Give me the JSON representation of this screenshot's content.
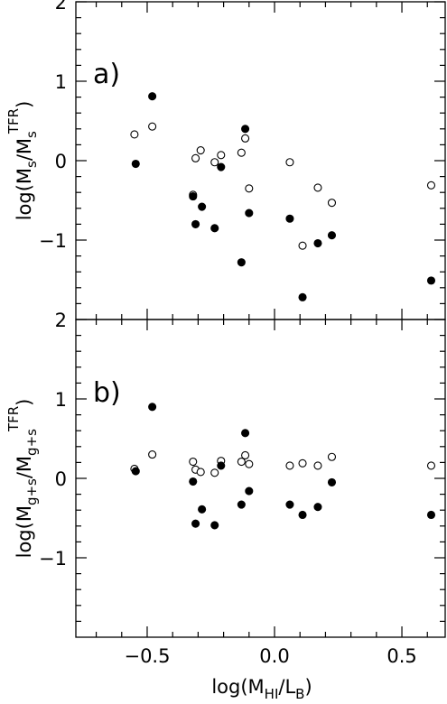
{
  "chart_data": [
    {
      "type": "scatter",
      "panel_label": "a)",
      "ylabel": {
        "main": "log(M",
        "sub1": "s",
        "mid": "/M",
        "sub2": "s",
        "sup": "TFR",
        "end": ")"
      },
      "xlim": [
        -0.78,
        0.67
      ],
      "ylim": [
        -2,
        2
      ],
      "yticks": [
        2,
        1,
        0,
        -1
      ],
      "ytick_labels": [
        "2",
        "1",
        "0",
        "−1"
      ],
      "series": [
        {
          "marker": "open-circle",
          "points": [
            {
              "x": -0.55,
              "y": 0.33
            },
            {
              "x": -0.48,
              "y": 0.43
            },
            {
              "x": -0.32,
              "y": -0.43
            },
            {
              "x": -0.31,
              "y": 0.03
            },
            {
              "x": -0.29,
              "y": 0.13
            },
            {
              "x": -0.235,
              "y": -0.02
            },
            {
              "x": -0.21,
              "y": 0.07
            },
            {
              "x": -0.13,
              "y": 0.1
            },
            {
              "x": -0.115,
              "y": 0.28
            },
            {
              "x": -0.1,
              "y": -0.35
            },
            {
              "x": 0.06,
              "y": -0.02
            },
            {
              "x": 0.11,
              "y": -1.07
            },
            {
              "x": 0.17,
              "y": -0.34
            },
            {
              "x": 0.225,
              "y": -0.53
            },
            {
              "x": 0.615,
              "y": -0.31
            }
          ]
        },
        {
          "marker": "filled-circle",
          "points": [
            {
              "x": -0.545,
              "y": -0.04
            },
            {
              "x": -0.48,
              "y": 0.81
            },
            {
              "x": -0.32,
              "y": -0.45
            },
            {
              "x": -0.31,
              "y": -0.8
            },
            {
              "x": -0.285,
              "y": -0.58
            },
            {
              "x": -0.235,
              "y": -0.85
            },
            {
              "x": -0.21,
              "y": -0.08
            },
            {
              "x": -0.13,
              "y": -1.28
            },
            {
              "x": -0.115,
              "y": 0.4
            },
            {
              "x": -0.1,
              "y": -0.66
            },
            {
              "x": 0.06,
              "y": -0.73
            },
            {
              "x": 0.11,
              "y": -1.72
            },
            {
              "x": 0.17,
              "y": -1.04
            },
            {
              "x": 0.225,
              "y": -0.94
            },
            {
              "x": 0.615,
              "y": -1.51
            }
          ]
        }
      ]
    },
    {
      "type": "scatter",
      "panel_label": "b)",
      "ylabel": {
        "main": "log(M",
        "sub1": "g+s",
        "mid": "/M",
        "sub2": "g+s",
        "sup": "TFR",
        "end": ")"
      },
      "xlabel": {
        "main": "log(M",
        "sub1": "HI",
        "mid": "/L",
        "sub2": "B",
        "end": ")"
      },
      "xlim": [
        -0.78,
        0.67
      ],
      "ylim": [
        -2,
        2
      ],
      "xticks": [
        -0.5,
        0,
        0.5
      ],
      "xtick_labels": [
        "−0.5",
        "0.0",
        "0.5"
      ],
      "yticks": [
        2,
        1,
        0,
        -1
      ],
      "ytick_labels": [
        "2",
        "1",
        "0",
        "−1"
      ],
      "series": [
        {
          "marker": "open-circle",
          "points": [
            {
              "x": -0.55,
              "y": 0.12
            },
            {
              "x": -0.48,
              "y": 0.3
            },
            {
              "x": -0.32,
              "y": 0.21
            },
            {
              "x": -0.31,
              "y": 0.11
            },
            {
              "x": -0.29,
              "y": 0.08
            },
            {
              "x": -0.235,
              "y": 0.07
            },
            {
              "x": -0.21,
              "y": 0.22
            },
            {
              "x": -0.13,
              "y": 0.21
            },
            {
              "x": -0.115,
              "y": 0.29
            },
            {
              "x": -0.1,
              "y": 0.18
            },
            {
              "x": 0.06,
              "y": 0.16
            },
            {
              "x": 0.11,
              "y": 0.19
            },
            {
              "x": 0.17,
              "y": 0.16
            },
            {
              "x": 0.225,
              "y": 0.27
            },
            {
              "x": 0.615,
              "y": 0.16
            }
          ]
        },
        {
          "marker": "filled-circle",
          "points": [
            {
              "x": -0.545,
              "y": 0.09
            },
            {
              "x": -0.48,
              "y": 0.9
            },
            {
              "x": -0.32,
              "y": -0.04
            },
            {
              "x": -0.31,
              "y": -0.57
            },
            {
              "x": -0.285,
              "y": -0.39
            },
            {
              "x": -0.235,
              "y": -0.59
            },
            {
              "x": -0.21,
              "y": 0.16
            },
            {
              "x": -0.13,
              "y": -0.33
            },
            {
              "x": -0.115,
              "y": 0.57
            },
            {
              "x": -0.1,
              "y": -0.16
            },
            {
              "x": 0.06,
              "y": -0.33
            },
            {
              "x": 0.11,
              "y": -0.46
            },
            {
              "x": 0.17,
              "y": -0.36
            },
            {
              "x": 0.225,
              "y": -0.05
            },
            {
              "x": 0.615,
              "y": -0.46
            }
          ]
        }
      ]
    }
  ]
}
